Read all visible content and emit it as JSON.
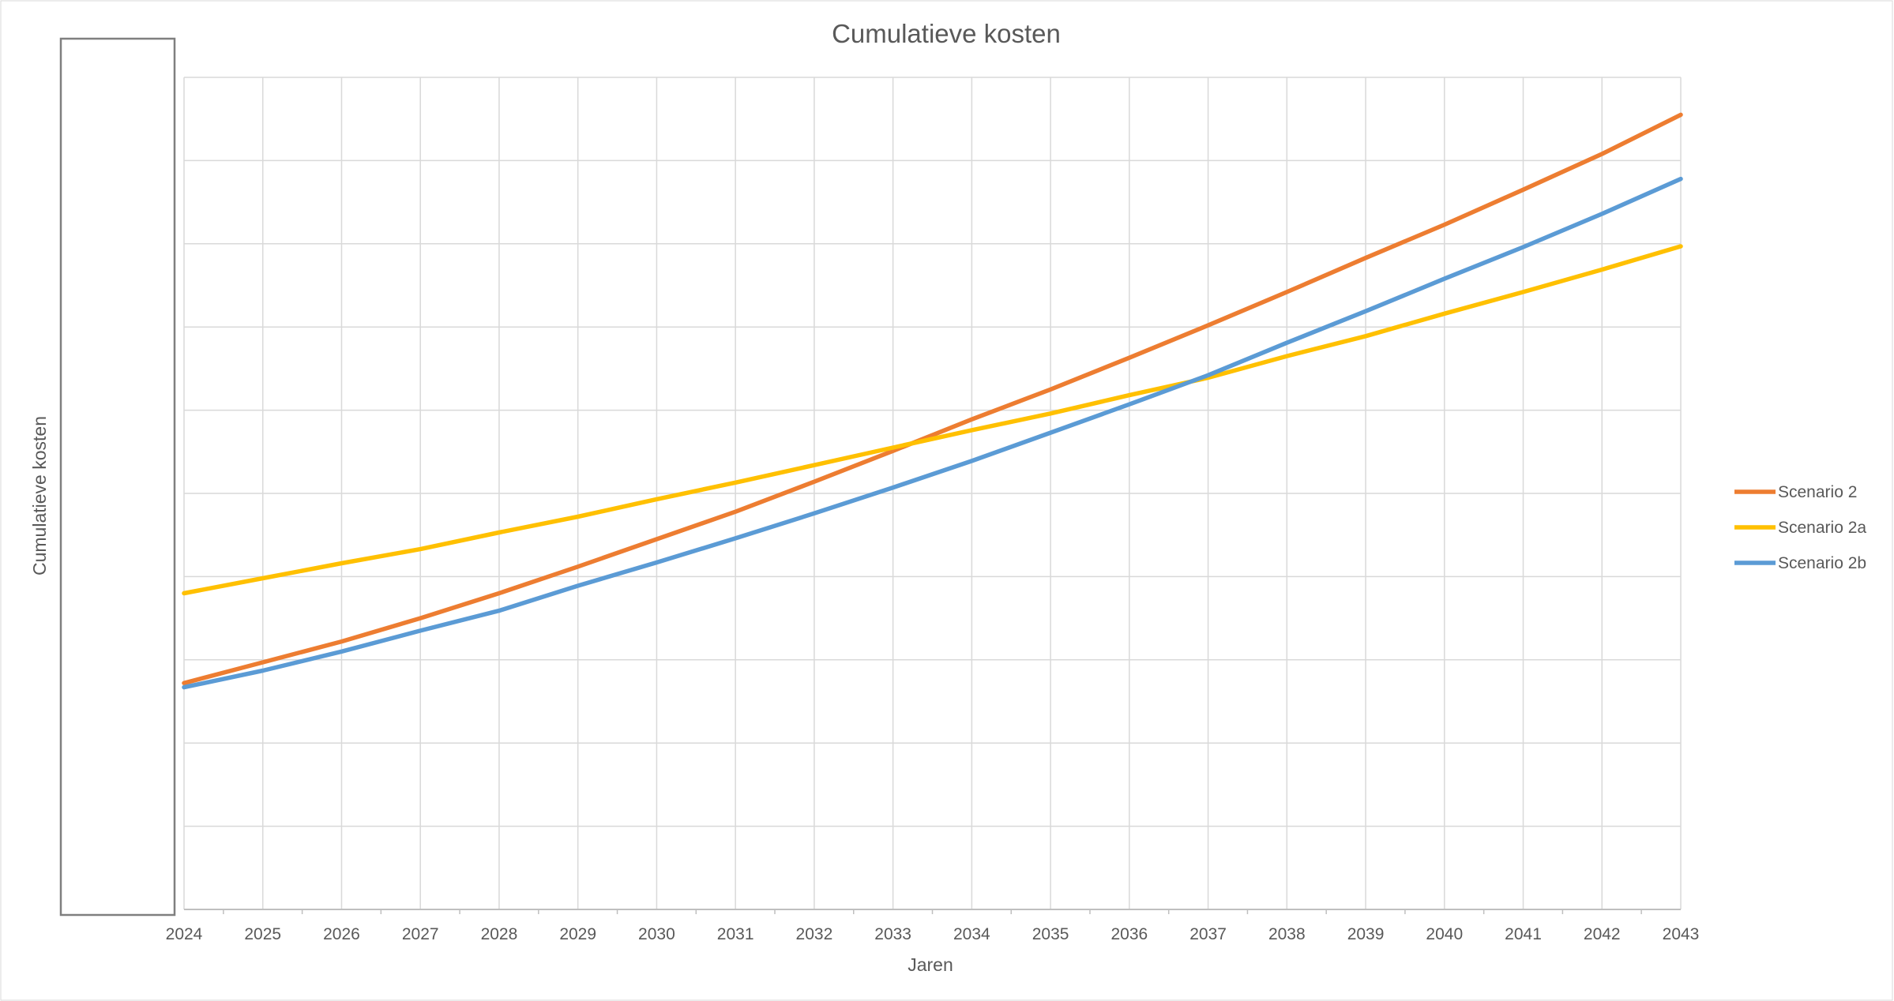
{
  "chart_data": {
    "type": "line",
    "title": "Cumulatieve kosten",
    "xlabel": "Jaren",
    "ylabel": "Cumulatieve kosten",
    "x": [
      "2024",
      "2025",
      "2026",
      "2027",
      "2028",
      "2029",
      "2030",
      "2031",
      "2032",
      "2033",
      "2034",
      "2035",
      "2036",
      "2037",
      "2038",
      "2039",
      "2040",
      "2041",
      "2042",
      "2043"
    ],
    "ylim": [
      0,
      10
    ],
    "y_ticks_labeled": false,
    "grid": true,
    "legend_position": "right",
    "series": [
      {
        "name": "Scenario 2",
        "color": "#ED7D31",
        "values": [
          2.72,
          2.97,
          3.22,
          3.5,
          3.8,
          4.12,
          4.45,
          4.78,
          5.14,
          5.51,
          5.89,
          6.25,
          6.63,
          7.02,
          7.42,
          7.83,
          8.23,
          8.65,
          9.08,
          9.55
        ]
      },
      {
        "name": "Scenario 2a",
        "color": "#FFC000",
        "values": [
          3.8,
          3.98,
          4.16,
          4.33,
          4.53,
          4.72,
          4.93,
          5.13,
          5.34,
          5.55,
          5.76,
          5.96,
          6.18,
          6.39,
          6.65,
          6.89,
          7.16,
          7.42,
          7.69,
          7.97
        ]
      },
      {
        "name": "Scenario 2b",
        "color": "#5B9BD5",
        "values": [
          2.67,
          2.87,
          3.1,
          3.35,
          3.59,
          3.89,
          4.17,
          4.46,
          4.76,
          5.07,
          5.39,
          5.73,
          6.07,
          6.42,
          6.81,
          7.19,
          7.58,
          7.96,
          8.36,
          8.78
        ]
      }
    ]
  }
}
